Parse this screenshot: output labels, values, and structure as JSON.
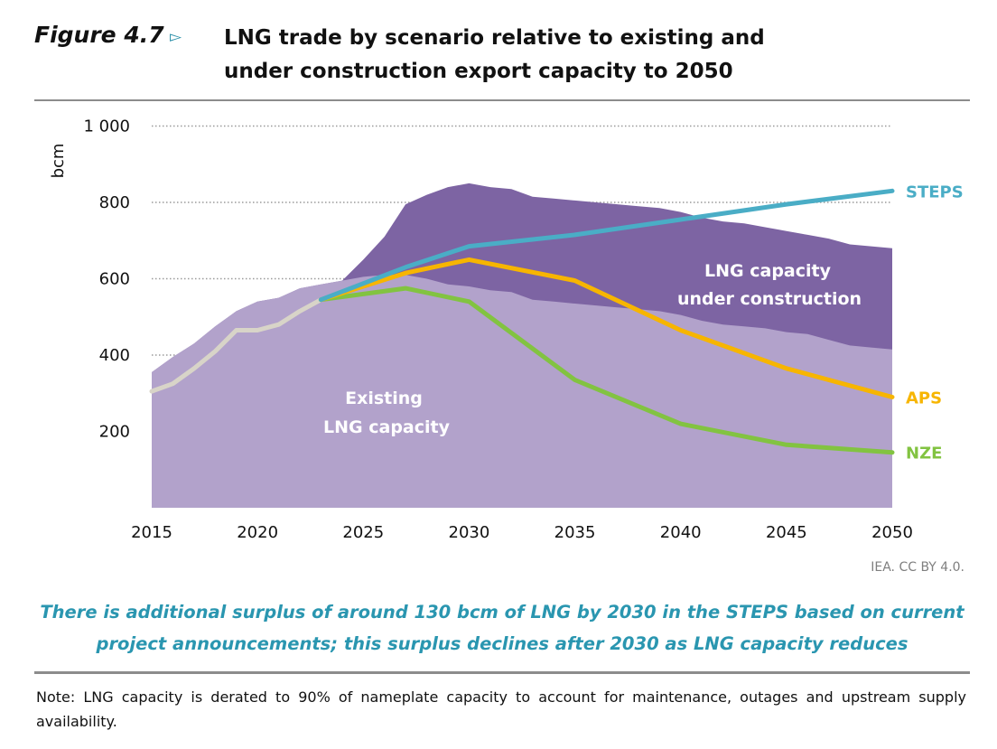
{
  "figure": {
    "label": "Figure 4.7",
    "title_line1": "LNG trade by scenario relative to existing and",
    "title_line2": "under construction export capacity to 2050"
  },
  "source": "IEA. CC BY 4.0.",
  "caption_line1": "There is additional surplus of around 130 bcm of LNG by 2030 in the STEPS based on current",
  "caption_line2": "project announcements; this surplus declines after 2030 as LNG capacity reduces",
  "note": "Note: LNG capacity is derated to 90% of nameplate capacity to account for maintenance, outages and upstream supply availability.",
  "chart_data": {
    "type": "area",
    "ylabel": "bcm",
    "xlabel": "",
    "xlim": [
      2015,
      2050
    ],
    "ylim": [
      0,
      1000
    ],
    "yticks": [
      200,
      400,
      600,
      800,
      1000
    ],
    "ytick_labels": [
      "200",
      "400",
      "600",
      "800",
      "1 000"
    ],
    "xticks": [
      2015,
      2020,
      2025,
      2030,
      2035,
      2040,
      2045,
      2050
    ],
    "grid": "horizontal dotted",
    "areas": [
      {
        "name": "Existing LNG capacity",
        "label_line1": "Existing",
        "label_line2": "LNG capacity",
        "color": "#b2a2cb",
        "x": [
          2015,
          2016,
          2017,
          2018,
          2019,
          2020,
          2021,
          2022,
          2023,
          2024,
          2025,
          2026,
          2027,
          2028,
          2029,
          2030,
          2031,
          2032,
          2033,
          2034,
          2035,
          2036,
          2037,
          2038,
          2039,
          2040,
          2041,
          2042,
          2043,
          2044,
          2045,
          2046,
          2047,
          2048,
          2049,
          2050
        ],
        "values": [
          355,
          395,
          430,
          475,
          515,
          540,
          550,
          575,
          585,
          595,
          605,
          610,
          610,
          600,
          585,
          580,
          570,
          565,
          545,
          540,
          535,
          530,
          525,
          520,
          515,
          505,
          490,
          480,
          475,
          470,
          460,
          455,
          440,
          425,
          420,
          415
        ]
      },
      {
        "name": "LNG capacity under construction",
        "label_line1": "LNG capacity",
        "label_line2": "under construction",
        "color": "#7d64a3",
        "x": [
          2015,
          2016,
          2017,
          2018,
          2019,
          2020,
          2021,
          2022,
          2023,
          2024,
          2025,
          2026,
          2027,
          2028,
          2029,
          2030,
          2031,
          2032,
          2033,
          2034,
          2035,
          2036,
          2037,
          2038,
          2039,
          2040,
          2041,
          2042,
          2043,
          2044,
          2045,
          2046,
          2047,
          2048,
          2049,
          2050
        ],
        "values": [
          355,
          395,
          430,
          475,
          515,
          540,
          550,
          575,
          585,
          595,
          650,
          710,
          795,
          820,
          840,
          850,
          840,
          835,
          815,
          810,
          805,
          800,
          795,
          790,
          785,
          775,
          760,
          750,
          745,
          735,
          725,
          715,
          705,
          690,
          685,
          680
        ]
      }
    ],
    "series": [
      {
        "name": "Historical",
        "color": "#d8d4c8",
        "x": [
          2015,
          2016,
          2017,
          2018,
          2019,
          2020,
          2021,
          2022,
          2023
        ],
        "values": [
          305,
          325,
          365,
          410,
          465,
          465,
          480,
          515,
          545
        ]
      },
      {
        "name": "STEPS",
        "color": "#4aadc6",
        "x": [
          2023,
          2027,
          2030,
          2035,
          2040,
          2045,
          2050
        ],
        "values": [
          545,
          630,
          685,
          715,
          755,
          795,
          830
        ]
      },
      {
        "name": "APS",
        "color": "#f7b500",
        "x": [
          2023,
          2027,
          2030,
          2035,
          2040,
          2045,
          2050
        ],
        "values": [
          545,
          615,
          650,
          595,
          465,
          365,
          290
        ]
      },
      {
        "name": "NZE",
        "color": "#82c341",
        "x": [
          2023,
          2027,
          2030,
          2035,
          2040,
          2045,
          2050
        ],
        "values": [
          545,
          575,
          540,
          335,
          220,
          165,
          145
        ]
      }
    ]
  }
}
